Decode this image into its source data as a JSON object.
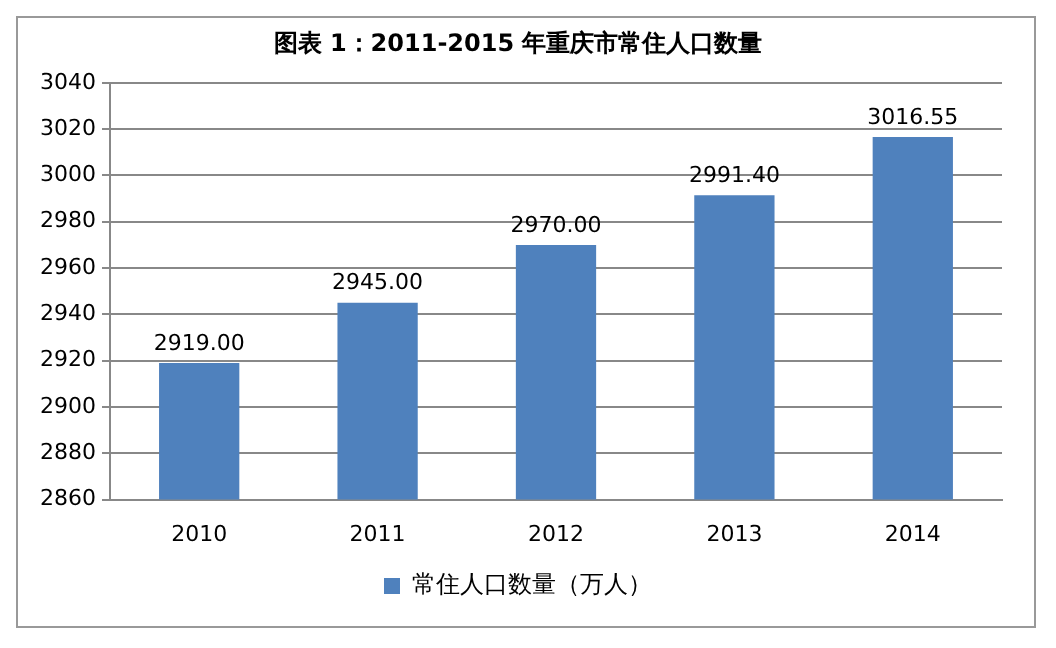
{
  "chart_data": {
    "type": "bar",
    "title": "图表 1：2011-2015 年重庆市常住人口数量",
    "categories": [
      "2010",
      "2011",
      "2012",
      "2013",
      "2014"
    ],
    "series": [
      {
        "name": "常住人口数量（万人）",
        "color": "#4f81bd",
        "values": [
          2919,
          2945,
          2970,
          2991.4,
          3016.55
        ],
        "value_labels": [
          "2919.00",
          "2945.00",
          "2970.00",
          "2991.40",
          "3016.55"
        ]
      }
    ],
    "ylim": [
      2860,
      3040
    ],
    "yticks": [
      2860,
      2880,
      2900,
      2920,
      2940,
      2960,
      2980,
      3000,
      3020,
      3040
    ],
    "grid": "y",
    "legend": "bottom"
  }
}
